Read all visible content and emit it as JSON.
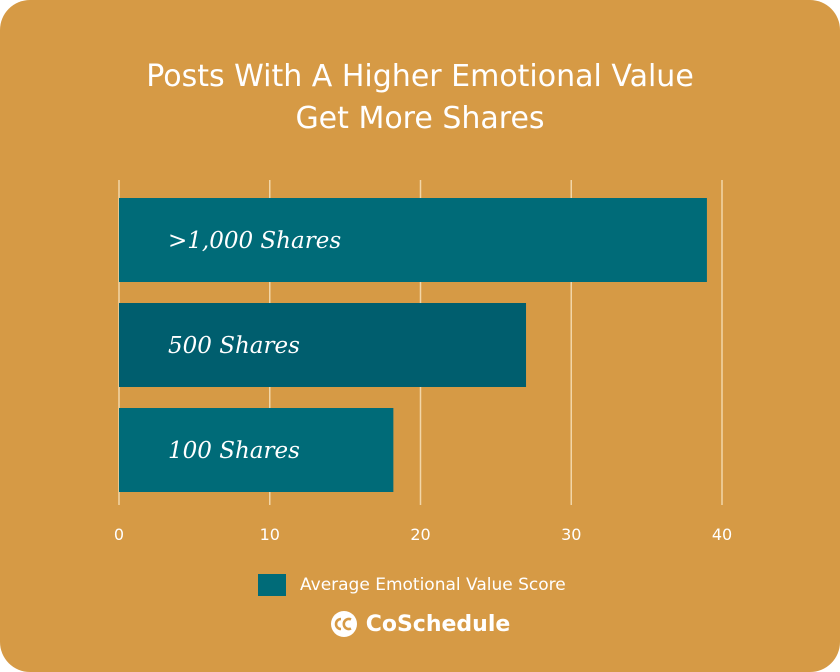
{
  "colors": {
    "background": "#D69A45",
    "bar": "#006B78",
    "bar_alt": "#005E6E",
    "grid": "#F2D6A8",
    "text": "#FFFFFF"
  },
  "chart_data": {
    "type": "bar",
    "orientation": "horizontal",
    "title": "Posts With A Higher Emotional Value Get More Shares",
    "title_lines": [
      "Posts With A Higher Emotional Value",
      "Get More Shares"
    ],
    "categories": [
      ">1,000 Shares",
      "500 Shares",
      "100 Shares"
    ],
    "series": [
      {
        "name": "Average Emotional Value Score",
        "values": [
          39,
          27,
          18.2
        ]
      }
    ],
    "xlim": [
      0,
      40
    ],
    "xticks": [
      "0",
      "10",
      "20",
      "30",
      "40"
    ],
    "xlabel": "",
    "ylabel": "",
    "grid": true,
    "legend_position": "bottom"
  },
  "legend": {
    "label": "Average Emotional Value Score"
  },
  "brand": {
    "name": "CoSchedule",
    "icon": "coschedule-logo-icon"
  }
}
